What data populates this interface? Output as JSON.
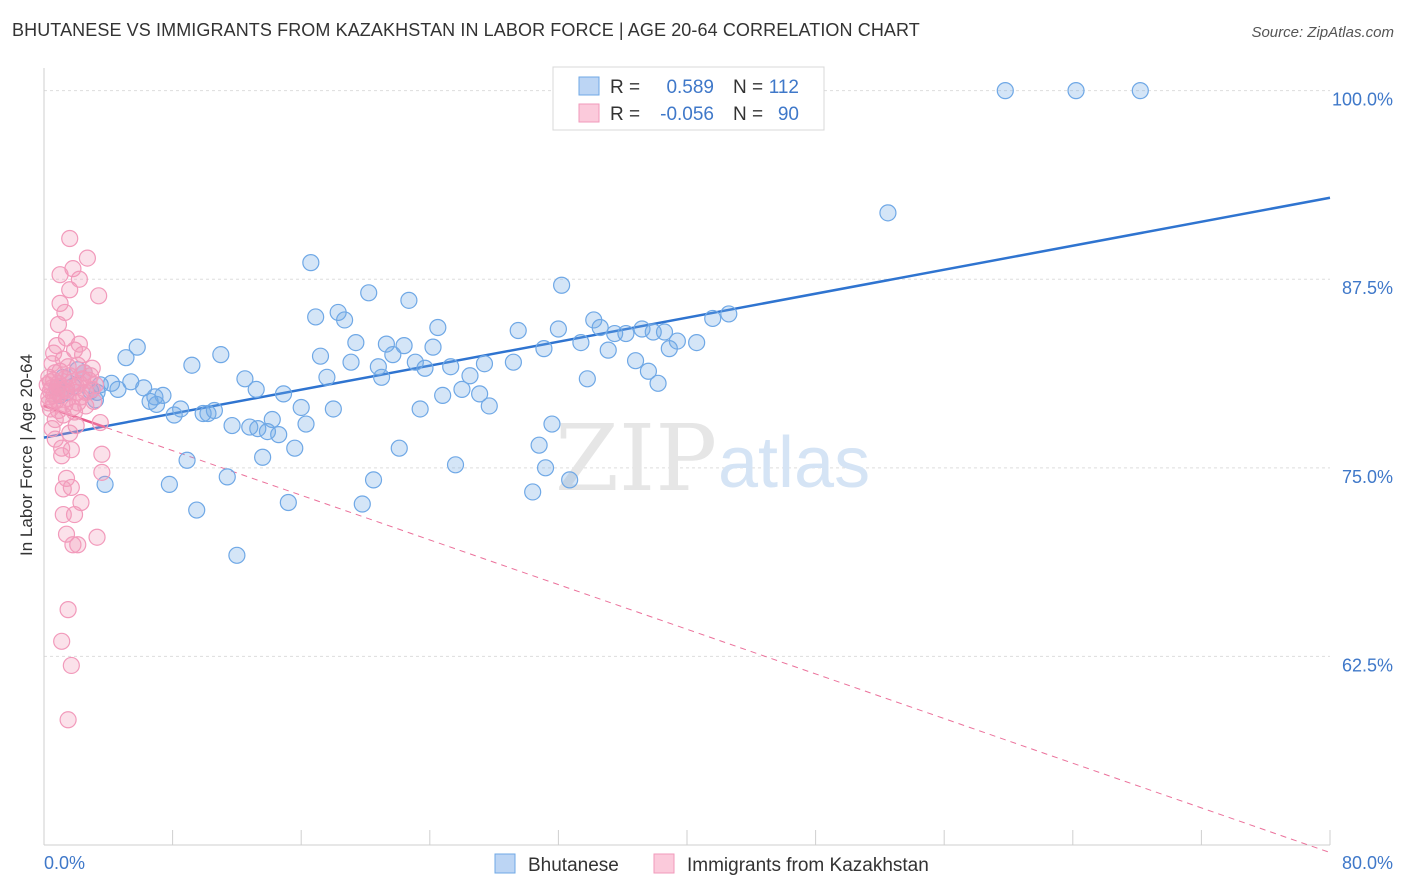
{
  "title": "BHUTANESE VS IMMIGRANTS FROM KAZAKHSTAN IN LABOR FORCE | AGE 20-64 CORRELATION CHART",
  "source": "Source: ZipAtlas.com",
  "watermark": {
    "zip": "ZIP",
    "atlas": "atlas"
  },
  "colors": {
    "blue": "#6fa8e6",
    "blue_line": "#2f74d0",
    "pink": "#f29abb",
    "pink_line": "#e8598a",
    "axis_label": "#3f78c9"
  },
  "legend": {
    "rows": [
      {
        "r_label": "R =",
        "r_value": "0.589",
        "n_label": "N =",
        "n_value": "112"
      },
      {
        "r_label": "R =",
        "r_value": "-0.056",
        "n_label": "N =",
        "n_value": "90"
      }
    ]
  },
  "chart_data": {
    "type": "scatter",
    "title": "BHUTANESE VS IMMIGRANTS FROM KAZAKHSTAN IN LABOR FORCE | AGE 20-64 CORRELATION CHART",
    "xlabel": "",
    "ylabel": "In Labor Force | Age 20-64",
    "xlim": [
      0,
      80
    ],
    "ylim": [
      50,
      101.5
    ],
    "x_tick_labels": [
      "0.0%",
      "80.0%"
    ],
    "y_ticks": [
      62.5,
      75.0,
      87.5,
      100.0
    ],
    "y_tick_labels": [
      "62.5%",
      "75.0%",
      "87.5%",
      "100.0%"
    ],
    "grid": true,
    "legend_position": "bottom",
    "series": [
      {
        "name": "Bhutanese",
        "color": "#6fa8e6",
        "r": 0.589,
        "n": 112,
        "trend": {
          "x": [
            0,
            80
          ],
          "y": [
            77.0,
            92.9
          ],
          "style": "solid"
        },
        "points": [
          [
            0.8,
            80.3
          ],
          [
            1.0,
            79.8
          ],
          [
            1.2,
            81.0
          ],
          [
            1.4,
            80.0
          ],
          [
            1.8,
            80.4
          ],
          [
            2.1,
            81.5
          ],
          [
            2.5,
            81.3
          ],
          [
            2.9,
            80.1
          ],
          [
            3.2,
            79.5
          ],
          [
            3.5,
            80.5
          ],
          [
            3.8,
            73.9
          ],
          [
            4.2,
            80.6
          ],
          [
            4.6,
            80.2
          ],
          [
            5.1,
            82.3
          ],
          [
            5.4,
            80.7
          ],
          [
            5.8,
            83.0
          ],
          [
            6.2,
            80.3
          ],
          [
            6.6,
            79.4
          ],
          [
            7.0,
            79.2
          ],
          [
            7.4,
            79.8
          ],
          [
            7.8,
            73.9
          ],
          [
            8.1,
            78.5
          ],
          [
            8.5,
            78.9
          ],
          [
            8.9,
            75.5
          ],
          [
            9.2,
            81.8
          ],
          [
            9.5,
            72.2
          ],
          [
            9.9,
            78.6
          ],
          [
            10.2,
            78.6
          ],
          [
            10.6,
            78.8
          ],
          [
            11.0,
            82.5
          ],
          [
            11.4,
            74.4
          ],
          [
            11.7,
            77.8
          ],
          [
            12.0,
            69.2
          ],
          [
            12.5,
            80.9
          ],
          [
            12.8,
            77.7
          ],
          [
            13.2,
            80.2
          ],
          [
            13.6,
            75.7
          ],
          [
            13.9,
            77.4
          ],
          [
            14.2,
            78.2
          ],
          [
            14.6,
            77.2
          ],
          [
            14.9,
            79.9
          ],
          [
            15.2,
            72.7
          ],
          [
            15.6,
            76.3
          ],
          [
            16.0,
            79.0
          ],
          [
            16.3,
            77.9
          ],
          [
            16.6,
            88.6
          ],
          [
            16.9,
            85.0
          ],
          [
            17.2,
            82.4
          ],
          [
            17.6,
            81.0
          ],
          [
            18.0,
            78.9
          ],
          [
            18.3,
            85.3
          ],
          [
            18.7,
            84.8
          ],
          [
            19.1,
            82.0
          ],
          [
            19.4,
            83.3
          ],
          [
            19.8,
            72.6
          ],
          [
            20.2,
            86.6
          ],
          [
            20.5,
            74.2
          ],
          [
            20.8,
            81.7
          ],
          [
            21.0,
            81.0
          ],
          [
            21.3,
            83.2
          ],
          [
            21.7,
            82.5
          ],
          [
            22.1,
            76.3
          ],
          [
            22.4,
            83.1
          ],
          [
            22.7,
            86.1
          ],
          [
            23.1,
            82.0
          ],
          [
            23.4,
            78.9
          ],
          [
            23.7,
            81.6
          ],
          [
            24.2,
            83.0
          ],
          [
            24.5,
            84.3
          ],
          [
            24.8,
            79.8
          ],
          [
            25.3,
            81.7
          ],
          [
            25.6,
            75.2
          ],
          [
            26.5,
            81.1
          ],
          [
            27.1,
            79.9
          ],
          [
            27.4,
            81.9
          ],
          [
            27.7,
            79.1
          ],
          [
            29.2,
            82.0
          ],
          [
            29.5,
            84.1
          ],
          [
            30.4,
            73.4
          ],
          [
            30.8,
            76.5
          ],
          [
            31.1,
            82.9
          ],
          [
            31.2,
            75.0
          ],
          [
            31.6,
            77.9
          ],
          [
            32.0,
            84.2
          ],
          [
            32.2,
            87.1
          ],
          [
            32.7,
            74.2
          ],
          [
            33.4,
            83.3
          ],
          [
            33.8,
            80.9
          ],
          [
            34.2,
            84.8
          ],
          [
            34.6,
            84.3
          ],
          [
            35.1,
            82.8
          ],
          [
            35.5,
            83.9
          ],
          [
            36.2,
            83.9
          ],
          [
            36.8,
            82.1
          ],
          [
            37.2,
            84.2
          ],
          [
            37.6,
            81.4
          ],
          [
            37.9,
            84.0
          ],
          [
            38.2,
            80.6
          ],
          [
            38.6,
            84.0
          ],
          [
            38.9,
            82.9
          ],
          [
            39.4,
            83.4
          ],
          [
            40.6,
            83.3
          ],
          [
            41.6,
            84.9
          ],
          [
            42.6,
            85.2
          ],
          [
            52.5,
            91.9
          ],
          [
            59.8,
            100.0
          ],
          [
            64.2,
            100.0
          ],
          [
            68.2,
            100.0
          ],
          [
            3.3,
            80.0
          ],
          [
            6.9,
            79.7
          ],
          [
            13.3,
            77.6
          ],
          [
            26.0,
            80.2
          ]
        ]
      },
      {
        "name": "Immigrants from Kazakhstan",
        "color": "#f29abb",
        "r": -0.056,
        "n": 90,
        "trend": {
          "x": [
            0,
            80
          ],
          "y": [
            79.1,
            49.5
          ],
          "style": "dashed",
          "solid_until_x": 3.8
        },
        "points": [
          [
            0.2,
            80.5
          ],
          [
            0.3,
            79.7
          ],
          [
            0.3,
            81.0
          ],
          [
            0.4,
            78.9
          ],
          [
            0.4,
            80.1
          ],
          [
            0.5,
            77.6
          ],
          [
            0.5,
            81.9
          ],
          [
            0.5,
            80.3
          ],
          [
            0.6,
            79.4
          ],
          [
            0.6,
            82.6
          ],
          [
            0.6,
            80.8
          ],
          [
            0.7,
            78.2
          ],
          [
            0.7,
            81.3
          ],
          [
            0.7,
            76.9
          ],
          [
            0.8,
            80.0
          ],
          [
            0.8,
            79.5
          ],
          [
            0.8,
            83.1
          ],
          [
            0.9,
            84.5
          ],
          [
            0.9,
            80.6
          ],
          [
            0.9,
            78.8
          ],
          [
            1.0,
            85.9
          ],
          [
            1.0,
            81.4
          ],
          [
            1.0,
            79.9
          ],
          [
            1.0,
            87.8
          ],
          [
            1.1,
            76.3
          ],
          [
            1.1,
            75.8
          ],
          [
            1.1,
            80.2
          ],
          [
            1.1,
            63.5
          ],
          [
            1.2,
            82.2
          ],
          [
            1.2,
            78.5
          ],
          [
            1.2,
            71.9
          ],
          [
            1.2,
            73.6
          ],
          [
            1.3,
            85.3
          ],
          [
            1.3,
            80.9
          ],
          [
            1.3,
            79.2
          ],
          [
            1.4,
            83.6
          ],
          [
            1.4,
            74.3
          ],
          [
            1.4,
            70.6
          ],
          [
            1.4,
            80.3
          ],
          [
            1.5,
            81.7
          ],
          [
            1.5,
            79.6
          ],
          [
            1.5,
            65.6
          ],
          [
            1.5,
            58.3
          ],
          [
            1.6,
            90.2
          ],
          [
            1.6,
            86.8
          ],
          [
            1.6,
            81.1
          ],
          [
            1.6,
            77.3
          ],
          [
            1.7,
            76.2
          ],
          [
            1.7,
            73.7
          ],
          [
            1.7,
            61.9
          ],
          [
            1.8,
            88.2
          ],
          [
            1.8,
            80.7
          ],
          [
            1.8,
            79.0
          ],
          [
            1.8,
            69.9
          ],
          [
            1.9,
            82.8
          ],
          [
            1.9,
            78.7
          ],
          [
            1.9,
            71.9
          ],
          [
            2.0,
            80.4
          ],
          [
            2.0,
            77.8
          ],
          [
            2.0,
            80.0
          ],
          [
            2.1,
            81.8
          ],
          [
            2.1,
            79.3
          ],
          [
            2.1,
            69.9
          ],
          [
            2.2,
            87.5
          ],
          [
            2.2,
            83.2
          ],
          [
            2.2,
            80.6
          ],
          [
            2.3,
            79.7
          ],
          [
            2.3,
            72.7
          ],
          [
            2.4,
            82.5
          ],
          [
            2.4,
            80.9
          ],
          [
            2.5,
            81.3
          ],
          [
            2.6,
            80.0
          ],
          [
            2.6,
            79.1
          ],
          [
            2.7,
            88.9
          ],
          [
            2.8,
            80.8
          ],
          [
            2.9,
            81.1
          ],
          [
            3.0,
            81.6
          ],
          [
            3.0,
            80.2
          ],
          [
            3.1,
            79.4
          ],
          [
            3.2,
            80.5
          ],
          [
            3.3,
            70.4
          ],
          [
            3.4,
            86.4
          ],
          [
            3.5,
            78.0
          ],
          [
            3.6,
            75.9
          ],
          [
            3.6,
            74.7
          ],
          [
            0.3,
            79.3
          ],
          [
            0.4,
            80.7
          ],
          [
            0.6,
            79.8
          ],
          [
            0.9,
            80.4
          ],
          [
            1.3,
            80.1
          ]
        ]
      }
    ]
  }
}
